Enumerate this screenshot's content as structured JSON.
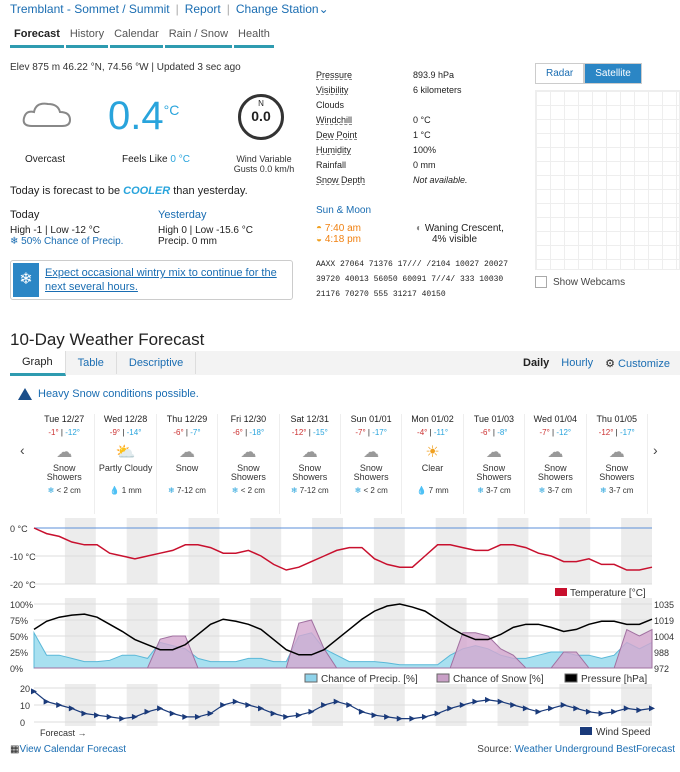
{
  "topbar": {
    "station": "Tremblant - Sommet / Summit",
    "report": "Report",
    "change": "Change Station"
  },
  "tabs": [
    "Forecast",
    "History",
    "Calendar",
    "Rain / Snow",
    "Health"
  ],
  "current": {
    "meta": "Elev 875 m 46.22 °N, 74.56 °W  |  Updated 3 sec ago",
    "temp": "0.4",
    "unit": "°C",
    "condition": "Overcast",
    "feels_label": "Feels Like",
    "feels_value": "0 °C",
    "wind_dir": "N",
    "wind_speed": "0.0",
    "wind_text": "Wind Variable",
    "gusts": "Gusts 0.0 km/h",
    "cooler_pre": "Today is forecast to be",
    "cooler_word": "COOLER",
    "cooler_post": "than yesterday."
  },
  "today": {
    "title": "Today",
    "high": "High -1",
    "low": "Low -12 °C",
    "precip": "50% Chance of Precip."
  },
  "yesterday": {
    "title": "Yesterday",
    "high": "High 0",
    "low": "Low -15.6 °C",
    "precip": "Precip. 0 mm"
  },
  "alert": {
    "text1": "Expect occasional wintry mix to continue for the",
    "text2": "next several hours."
  },
  "stats": [
    {
      "k": "Pressure",
      "v": "893.9 hPa"
    },
    {
      "k": "Visibility",
      "v": "6 kilometers"
    },
    {
      "k": "Clouds",
      "v": ""
    },
    {
      "k": "Windchill",
      "v": "0 °C"
    },
    {
      "k": "Dew Point",
      "v": "1 °C"
    },
    {
      "k": "Humidity",
      "v": "100%"
    },
    {
      "k": "Rainfall",
      "v": "0 mm"
    },
    {
      "k": "Snow Depth",
      "v": "Not available."
    }
  ],
  "sunmoon": {
    "title": "Sun & Moon",
    "rise": "7:40 am",
    "set": "4:18 pm",
    "moon": "Waning Crescent,",
    "vis": "4% visible"
  },
  "metar": [
    "AAXX 27064 71376 17/// /2104 10027 20027",
    "39720 40013 56050 60091 7//4/ 333 10030",
    "21176 70270 555 31217 40150"
  ],
  "radar": {
    "tab1": "Radar",
    "tab2": "Satellite",
    "webcam": "Show Webcams"
  },
  "ten_day": {
    "title": "10-Day Weather Forecast",
    "tabs": [
      "Graph",
      "Table",
      "Descriptive"
    ],
    "daily": "Daily",
    "hourly": "Hourly",
    "customize": "Customize",
    "warning": "Heavy Snow conditions possible."
  },
  "days": [
    {
      "d": "Tue 12/27",
      "hi": "-1°",
      "lo": "-12°",
      "c1": "Snow",
      "c2": "Showers",
      "p": "< 2 cm",
      "ic": "snow"
    },
    {
      "d": "Wed 12/28",
      "hi": "-9°",
      "lo": "-14°",
      "c1": "Partly Cloudy",
      "c2": "",
      "p": "1 mm",
      "ic": "pc"
    },
    {
      "d": "Thu 12/29",
      "hi": "-6°",
      "lo": "-7°",
      "c1": "Snow",
      "c2": "",
      "p": "7-12 cm",
      "ic": "snow"
    },
    {
      "d": "Fri 12/30",
      "hi": "-6°",
      "lo": "-18°",
      "c1": "Snow",
      "c2": "Showers",
      "p": "< 2 cm",
      "ic": "snow"
    },
    {
      "d": "Sat 12/31",
      "hi": "-12°",
      "lo": "-15°",
      "c1": "Snow",
      "c2": "Showers",
      "p": "7-12 cm",
      "ic": "snow"
    },
    {
      "d": "Sun 01/01",
      "hi": "-7°",
      "lo": "-17°",
      "c1": "Snow",
      "c2": "Showers",
      "p": "< 2 cm",
      "ic": "snow"
    },
    {
      "d": "Mon 01/02",
      "hi": "-4°",
      "lo": "-11°",
      "c1": "Clear",
      "c2": "",
      "p": "7 mm",
      "ic": "sun"
    },
    {
      "d": "Tue 01/03",
      "hi": "-6°",
      "lo": "-8°",
      "c1": "Snow",
      "c2": "Showers",
      "p": "3-7 cm",
      "ic": "snow"
    },
    {
      "d": "Wed 01/04",
      "hi": "-7°",
      "lo": "-12°",
      "c1": "Snow",
      "c2": "Showers",
      "p": "3-7 cm",
      "ic": "snow"
    },
    {
      "d": "Thu 01/05",
      "hi": "-12°",
      "lo": "-17°",
      "c1": "Snow",
      "c2": "Showers",
      "p": "3-7 cm",
      "ic": "snow"
    }
  ],
  "chart_data": [
    {
      "type": "line",
      "series": [
        {
          "name": "Temperature [°C]",
          "color": "#c8102e"
        }
      ],
      "ylabel_ticks": [
        "0 °C",
        "-10 °C",
        "-20 °C"
      ]
    },
    {
      "type": "area",
      "series": [
        {
          "name": "Chance of Precip. [%]",
          "color": "#8fd3ea"
        },
        {
          "name": "Chance of Snow [%]",
          "color": "#c9a0c7"
        },
        {
          "name": "Pressure [hPa]",
          "color": "#000000"
        }
      ],
      "left_ticks": [
        "100%",
        "75%",
        "50%",
        "25%",
        "0%"
      ],
      "right_ticks": [
        "1035",
        "1019",
        "1004",
        "988",
        "972"
      ]
    },
    {
      "type": "line",
      "series": [
        {
          "name": "Wind Speed",
          "color": "#1a3a7a"
        }
      ],
      "ticks": [
        "20",
        "10",
        "0"
      ],
      "note": "Forecast →"
    }
  ],
  "footer": {
    "calendar": "View Calendar Forecast",
    "source_label": "Source:",
    "source": "Weather Underground BestForecast"
  }
}
